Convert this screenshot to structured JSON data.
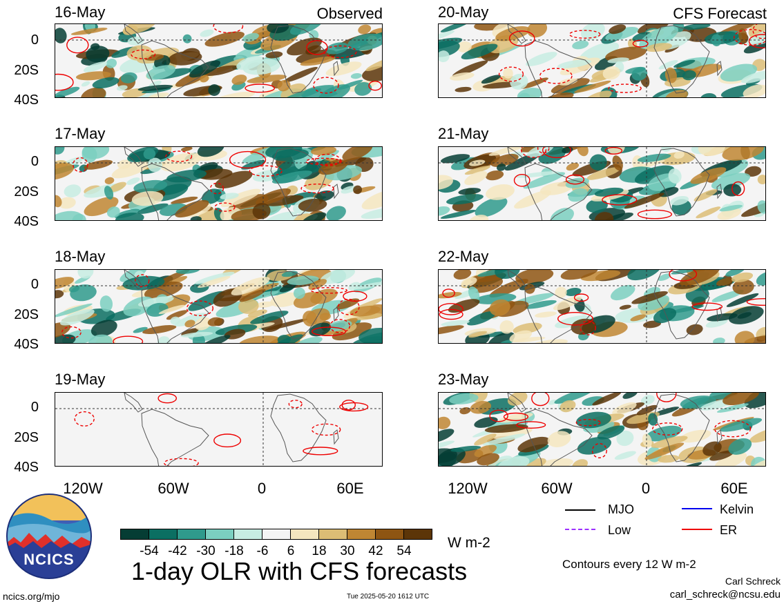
{
  "panels": [
    {
      "date": "16-May",
      "tag": "Observed",
      "kind": "observed"
    },
    {
      "date": "17-May",
      "tag": "",
      "kind": "observed"
    },
    {
      "date": "18-May",
      "tag": "",
      "kind": "observed"
    },
    {
      "date": "19-May",
      "tag": "",
      "kind": "blank"
    },
    {
      "date": "20-May",
      "tag": "CFS Forecast",
      "kind": "forecast"
    },
    {
      "date": "21-May",
      "tag": "",
      "kind": "forecast"
    },
    {
      "date": "22-May",
      "tag": "",
      "kind": "forecast"
    },
    {
      "date": "23-May",
      "tag": "",
      "kind": "forecast"
    }
  ],
  "y_ticks": [
    "0",
    "20S",
    "40S"
  ],
  "x_ticks": [
    "120W",
    "60W",
    "0",
    "60E"
  ],
  "colorbar": {
    "labels": [
      "-54",
      "-42",
      "-30",
      "-18",
      "-6",
      "6",
      "18",
      "30",
      "42",
      "54"
    ],
    "colors": [
      "#053d34",
      "#0b6f62",
      "#2f9a8c",
      "#7bcfc0",
      "#c7ece2",
      "#f4f4f4",
      "#f4e6bf",
      "#dcbd75",
      "#bf8633",
      "#8e5512",
      "#5c3508"
    ],
    "units": "W m-2"
  },
  "title": "1-day OLR with CFS forecasts",
  "legend": [
    {
      "label": "MJO",
      "color": "#000000",
      "style": "solid"
    },
    {
      "label": "Kelvin",
      "color": "#0000ee",
      "style": "solid"
    },
    {
      "label": "Low",
      "color": "#9b30ff",
      "style": "dashed"
    },
    {
      "label": "ER",
      "color": "#ee0000",
      "style": "solid"
    }
  ],
  "contour_note": "Contours every 12 W m-2",
  "credit_name": "Carl Schreck",
  "credit_email": "carl_schreck@ncsu.edu",
  "site": "ncics.org/mjo",
  "timestamp": "Tue 2025-05-20 1612 UTC",
  "logo_text": "NCICS"
}
